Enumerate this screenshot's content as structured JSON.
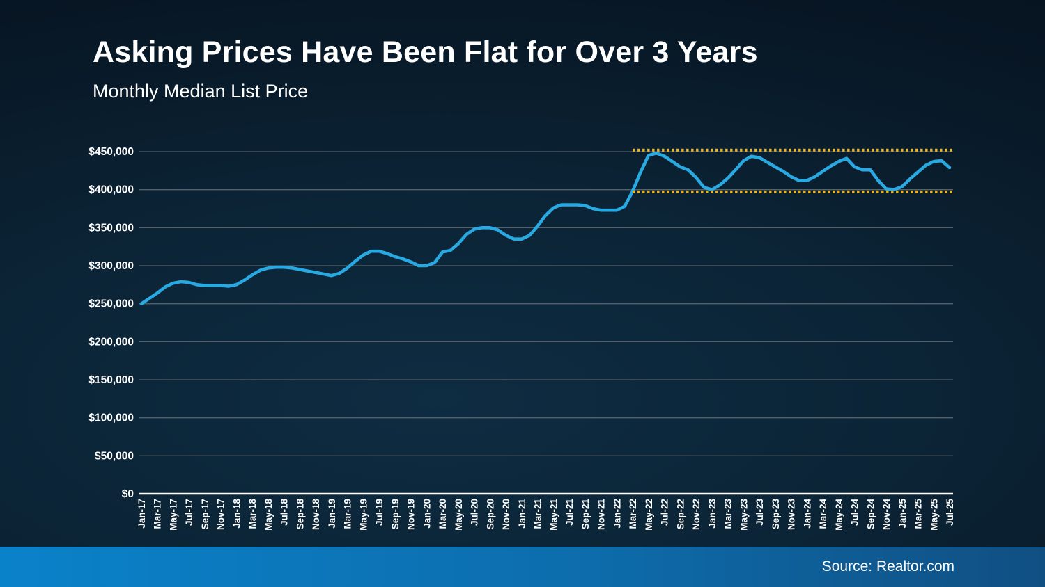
{
  "header": {
    "title": "Asking Prices Have Been Flat for Over 3 Years",
    "subtitle": "Monthly Median List Price"
  },
  "footer": {
    "source": "Source: Realtor.com"
  },
  "colors": {
    "line": "#29a9e1",
    "reference": "#e9b52b",
    "grid": "#55606a",
    "axis": "#ffffff",
    "label": "#ffffff",
    "footer_left": "#0a82ca",
    "footer_right": "#104f82"
  },
  "chart_data": {
    "type": "line",
    "title": "Asking Prices Have Been Flat for Over 3 Years",
    "subtitle": "Monthly Median List Price",
    "source": "Source: Realtor.com",
    "grid": "horizontal",
    "legend": "none",
    "ylim": [
      0,
      450000
    ],
    "x_tick_step": 2,
    "x": [
      "Jan-17",
      "Feb-17",
      "Mar-17",
      "Apr-17",
      "May-17",
      "Jun-17",
      "Jul-17",
      "Aug-17",
      "Sep-17",
      "Oct-17",
      "Nov-17",
      "Dec-17",
      "Jan-18",
      "Feb-18",
      "Mar-18",
      "Apr-18",
      "May-18",
      "Jun-18",
      "Jul-18",
      "Aug-18",
      "Sep-18",
      "Oct-18",
      "Nov-18",
      "Dec-18",
      "Jan-19",
      "Feb-19",
      "Mar-19",
      "Apr-19",
      "May-19",
      "Jun-19",
      "Jul-19",
      "Aug-19",
      "Sep-19",
      "Oct-19",
      "Nov-19",
      "Dec-19",
      "Jan-20",
      "Feb-20",
      "Mar-20",
      "Apr-20",
      "May-20",
      "Jun-20",
      "Jul-20",
      "Aug-20",
      "Sep-20",
      "Oct-20",
      "Nov-20",
      "Dec-20",
      "Jan-21",
      "Feb-21",
      "Mar-21",
      "Apr-21",
      "May-21",
      "Jun-21",
      "Jul-21",
      "Aug-21",
      "Sep-21",
      "Oct-21",
      "Nov-21",
      "Dec-21",
      "Jan-22",
      "Feb-22",
      "Mar-22",
      "Apr-22",
      "May-22",
      "Jun-22",
      "Jul-22",
      "Aug-22",
      "Sep-22",
      "Oct-22",
      "Nov-22",
      "Dec-22",
      "Jan-23",
      "Feb-23",
      "Mar-23",
      "Apr-23",
      "May-23",
      "Jun-23",
      "Jul-23",
      "Aug-23",
      "Sep-23",
      "Oct-23",
      "Nov-23",
      "Dec-23",
      "Jan-24",
      "Feb-24",
      "Mar-24",
      "Apr-24",
      "May-24",
      "Jun-24",
      "Jul-24",
      "Aug-24",
      "Sep-24",
      "Oct-24",
      "Nov-24",
      "Dec-24",
      "Jan-25",
      "Feb-25",
      "Mar-25",
      "Apr-25",
      "May-25",
      "Jun-25",
      "Jul-25"
    ],
    "series": [
      {
        "name": "Monthly Median List Price",
        "values": [
          250000,
          257000,
          264000,
          272000,
          277000,
          279000,
          278000,
          275000,
          274000,
          274000,
          274000,
          273000,
          275000,
          281000,
          288000,
          294000,
          297000,
          298000,
          298000,
          297000,
          295000,
          293000,
          291000,
          289000,
          287000,
          290000,
          297000,
          306000,
          314000,
          319000,
          319000,
          316000,
          312000,
          309000,
          305000,
          300000,
          300000,
          304000,
          318000,
          320000,
          329000,
          341000,
          348000,
          350000,
          350000,
          347000,
          340000,
          335000,
          335000,
          340000,
          352000,
          366000,
          376000,
          380000,
          380000,
          380000,
          379000,
          375000,
          373000,
          373000,
          373000,
          378000,
          398000,
          423000,
          445000,
          448000,
          444000,
          437000,
          430000,
          426000,
          416000,
          403000,
          400000,
          406000,
          415000,
          426000,
          438000,
          444000,
          442000,
          436000,
          430000,
          424000,
          417000,
          412000,
          412000,
          417000,
          424000,
          431000,
          437000,
          441000,
          430000,
          426000,
          426000,
          412000,
          401000,
          400000,
          404000,
          414000,
          423000,
          432000,
          437000,
          438000,
          429000
        ]
      }
    ],
    "y_ticks": [
      {
        "label": "$0",
        "value": 0
      },
      {
        "label": "$50,000",
        "value": 50000
      },
      {
        "label": "$100,000",
        "value": 100000
      },
      {
        "label": "$150,000",
        "value": 150000
      },
      {
        "label": "$200,000",
        "value": 200000
      },
      {
        "label": "$250,000",
        "value": 250000
      },
      {
        "label": "$300,000",
        "value": 300000
      },
      {
        "label": "$350,000",
        "value": 350000
      },
      {
        "label": "$400,000",
        "value": 400000
      },
      {
        "label": "$450,000",
        "value": 450000
      }
    ],
    "reference_lines": [
      {
        "value": 452000,
        "style": "dotted",
        "color": "#e9b52b",
        "start_x": "Mar-22",
        "end_x": "Jul-25"
      },
      {
        "value": 397000,
        "style": "dotted",
        "color": "#e9b52b",
        "start_x": "Mar-22",
        "end_x": "Jul-25"
      }
    ]
  }
}
